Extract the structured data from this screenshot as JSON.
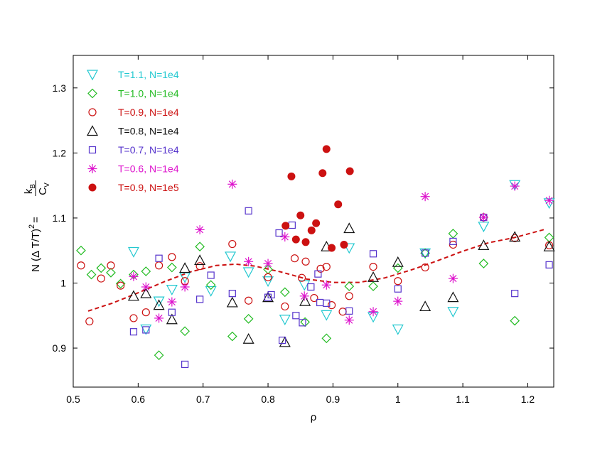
{
  "chart_data": {
    "type": "scatter",
    "xlabel": "ρ",
    "ylabel_parts": {
      "prefix": "N (Δ T/T)",
      "exponent": "2",
      "equals": "=",
      "numerator": "k",
      "numerator_sub": "B",
      "denominator": "C",
      "denominator_sub": "V"
    },
    "xlim": [
      0.5,
      1.24
    ],
    "ylim": [
      0.84,
      1.35
    ],
    "x_ticks": [
      0.5,
      0.6,
      0.7,
      0.8,
      0.9,
      1,
      1.1,
      1.2
    ],
    "x_tick_labels": [
      "0.5",
      "0.6",
      "0.7",
      "0.8",
      "0.9",
      "1",
      "1.1",
      "1.2"
    ],
    "y_ticks": [
      0.9,
      1.0,
      1.1,
      1.2,
      1.3
    ],
    "y_tick_labels": [
      "0.9",
      "1",
      "1.1",
      "1.2",
      "1.3"
    ],
    "grid": false,
    "legend_position": "top-left",
    "series": [
      {
        "name": "T=1.1, N=1e4",
        "marker": "triangle-down",
        "color": "#22c8d0",
        "points": [
          [
            0.593,
            1.048
          ],
          [
            0.612,
            0.929
          ],
          [
            0.632,
            0.972
          ],
          [
            0.652,
            0.99
          ],
          [
            0.672,
            1.009
          ],
          [
            0.712,
            0.988
          ],
          [
            0.742,
            1.041
          ],
          [
            0.77,
            1.017
          ],
          [
            0.8,
            1.003
          ],
          [
            0.826,
            0.944
          ],
          [
            0.856,
            0.997
          ],
          [
            0.89,
            0.951
          ],
          [
            0.925,
            1.054
          ],
          [
            0.962,
            0.948
          ],
          [
            1.0,
            0.929
          ],
          [
            1.042,
            1.046
          ],
          [
            1.085,
            0.956
          ],
          [
            1.132,
            1.087
          ],
          [
            1.18,
            1.151
          ],
          [
            1.233,
            1.123
          ]
        ]
      },
      {
        "name": "T=1.0, N=1e4",
        "marker": "diamond",
        "color": "#22bb22",
        "points": [
          [
            0.512,
            1.05
          ],
          [
            0.528,
            1.013
          ],
          [
            0.543,
            1.023
          ],
          [
            0.558,
            1.016
          ],
          [
            0.573,
            0.999
          ],
          [
            0.593,
            1.013
          ],
          [
            0.612,
            1.018
          ],
          [
            0.632,
            0.889
          ],
          [
            0.652,
            1.024
          ],
          [
            0.672,
            0.926
          ],
          [
            0.695,
            1.056
          ],
          [
            0.712,
            0.997
          ],
          [
            0.745,
            0.918
          ],
          [
            0.77,
            0.945
          ],
          [
            0.8,
            1.021
          ],
          [
            0.826,
            0.986
          ],
          [
            0.857,
            0.94
          ],
          [
            0.89,
            0.915
          ],
          [
            0.925,
            0.995
          ],
          [
            0.962,
            0.995
          ],
          [
            1.0,
            1.023
          ],
          [
            1.042,
            1.046
          ],
          [
            1.085,
            1.076
          ],
          [
            1.132,
            1.03
          ],
          [
            1.18,
            0.942
          ],
          [
            1.233,
            1.07
          ]
        ]
      },
      {
        "name": "T=0.9, N=1e4",
        "marker": "circle-open",
        "color": "#cc1111",
        "points": [
          [
            0.512,
            1.027
          ],
          [
            0.525,
            0.941
          ],
          [
            0.543,
            1.007
          ],
          [
            0.558,
            1.027
          ],
          [
            0.573,
            0.996
          ],
          [
            0.593,
            0.946
          ],
          [
            0.612,
            0.955
          ],
          [
            0.632,
            1.027
          ],
          [
            0.652,
            1.04
          ],
          [
            0.672,
            1.003
          ],
          [
            0.695,
            1.026
          ],
          [
            0.745,
            1.06
          ],
          [
            0.77,
            0.973
          ],
          [
            0.8,
            1.009
          ],
          [
            0.826,
            0.964
          ],
          [
            0.841,
            1.038
          ],
          [
            0.852,
            1.008
          ],
          [
            0.858,
            1.033
          ],
          [
            0.871,
            0.977
          ],
          [
            0.881,
            1.022
          ],
          [
            0.89,
            1.025
          ],
          [
            0.898,
            0.966
          ],
          [
            0.915,
            0.956
          ],
          [
            0.925,
            0.98
          ],
          [
            0.962,
            1.025
          ],
          [
            1.0,
            1.003
          ],
          [
            1.042,
            1.024
          ],
          [
            1.085,
            1.059
          ],
          [
            1.132,
            1.101
          ],
          [
            1.18,
            1.069
          ],
          [
            1.233,
            1.058
          ]
        ]
      },
      {
        "name": "T=0.8, N=1e4",
        "marker": "triangle-up",
        "color": "#111111",
        "points": [
          [
            0.593,
            0.98
          ],
          [
            0.612,
            0.984
          ],
          [
            0.632,
            0.966
          ],
          [
            0.652,
            0.944
          ],
          [
            0.672,
            1.023
          ],
          [
            0.695,
            1.035
          ],
          [
            0.745,
            0.97
          ],
          [
            0.77,
            0.914
          ],
          [
            0.8,
            0.978
          ],
          [
            0.826,
            0.909
          ],
          [
            0.857,
            0.972
          ],
          [
            0.89,
            1.056
          ],
          [
            0.925,
            1.084
          ],
          [
            0.962,
            1.009
          ],
          [
            1.0,
            1.032
          ],
          [
            1.042,
            0.964
          ],
          [
            1.085,
            0.978
          ],
          [
            1.132,
            1.058
          ],
          [
            1.18,
            1.071
          ],
          [
            1.233,
            1.056
          ]
        ]
      },
      {
        "name": "T=0.7, N=1e4",
        "marker": "square",
        "color": "#5533cc",
        "points": [
          [
            0.593,
            0.925
          ],
          [
            0.612,
            0.928
          ],
          [
            0.632,
            1.038
          ],
          [
            0.652,
            0.955
          ],
          [
            0.672,
            0.875
          ],
          [
            0.695,
            0.975
          ],
          [
            0.712,
            1.012
          ],
          [
            0.745,
            0.984
          ],
          [
            0.77,
            1.111
          ],
          [
            0.8,
            0.978
          ],
          [
            0.805,
            0.982
          ],
          [
            0.817,
            1.077
          ],
          [
            0.822,
            0.912
          ],
          [
            0.837,
            1.089
          ],
          [
            0.843,
            0.95
          ],
          [
            0.853,
            0.939
          ],
          [
            0.866,
            0.994
          ],
          [
            0.877,
            1.014
          ],
          [
            0.88,
            0.97
          ],
          [
            0.89,
            0.969
          ],
          [
            0.925,
            0.957
          ],
          [
            0.962,
            1.045
          ],
          [
            1.0,
            0.991
          ],
          [
            1.042,
            1.046
          ],
          [
            1.085,
            1.064
          ],
          [
            1.132,
            1.101
          ],
          [
            1.18,
            0.984
          ],
          [
            1.233,
            1.028
          ]
        ]
      },
      {
        "name": "T=0.6, N=1e4",
        "marker": "asterisk",
        "color": "#dd11cc",
        "points": [
          [
            0.593,
            1.01
          ],
          [
            0.612,
            0.994
          ],
          [
            0.632,
            0.946
          ],
          [
            0.652,
            0.971
          ],
          [
            0.672,
            0.994
          ],
          [
            0.695,
            1.082
          ],
          [
            0.745,
            1.152
          ],
          [
            0.77,
            1.033
          ],
          [
            0.8,
            1.03
          ],
          [
            0.826,
            1.071
          ],
          [
            0.856,
            0.98
          ],
          [
            0.89,
            0.997
          ],
          [
            0.925,
            0.943
          ],
          [
            0.962,
            0.956
          ],
          [
            1.0,
            0.972
          ],
          [
            1.042,
            1.133
          ],
          [
            1.085,
            1.007
          ],
          [
            1.132,
            1.101
          ],
          [
            1.18,
            1.149
          ],
          [
            1.233,
            1.127
          ]
        ]
      },
      {
        "name": "T=0.9, N=1e5",
        "marker": "circle-filled",
        "color": "#cc1111",
        "points": [
          [
            0.827,
            1.088
          ],
          [
            0.836,
            1.164
          ],
          [
            0.843,
            1.067
          ],
          [
            0.85,
            1.104
          ],
          [
            0.858,
            1.063
          ],
          [
            0.867,
            1.081
          ],
          [
            0.874,
            1.092
          ],
          [
            0.884,
            1.169
          ],
          [
            0.89,
            1.206
          ],
          [
            0.898,
            1.054
          ],
          [
            0.908,
            1.121
          ],
          [
            0.917,
            1.059
          ],
          [
            0.926,
            1.172
          ]
        ]
      }
    ],
    "trend_line": {
      "style": "dashed",
      "color": "#cc1111",
      "points": [
        [
          0.523,
          0.957
        ],
        [
          0.56,
          0.969
        ],
        [
          0.6,
          0.985
        ],
        [
          0.64,
          1.002
        ],
        [
          0.68,
          1.017
        ],
        [
          0.72,
          1.027
        ],
        [
          0.75,
          1.029
        ],
        [
          0.78,
          1.026
        ],
        [
          0.82,
          1.017
        ],
        [
          0.86,
          1.006
        ],
        [
          0.9,
          1.001
        ],
        [
          0.94,
          1.001
        ],
        [
          0.98,
          1.008
        ],
        [
          1.02,
          1.02
        ],
        [
          1.06,
          1.034
        ],
        [
          1.1,
          1.049
        ],
        [
          1.14,
          1.062
        ],
        [
          1.18,
          1.07
        ],
        [
          1.228,
          1.083
        ]
      ]
    }
  }
}
